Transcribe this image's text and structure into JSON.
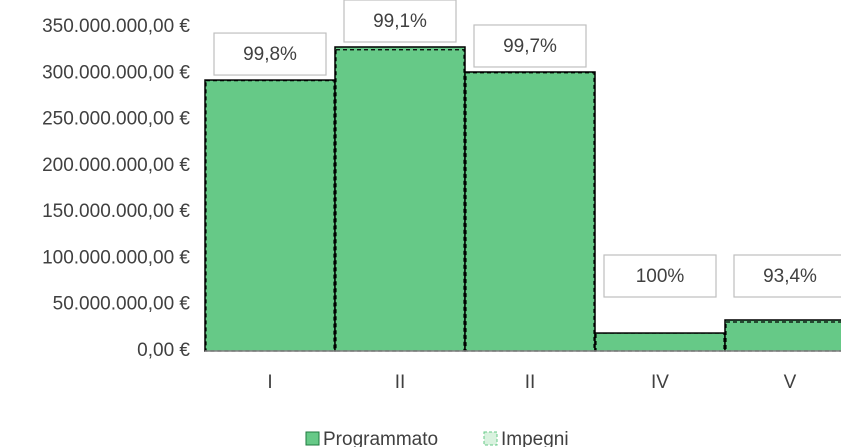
{
  "chart_data": {
    "type": "bar",
    "categories": [
      "I",
      "II",
      "II",
      "IV",
      "V"
    ],
    "series": [
      {
        "name": "Programmato",
        "color": "#66c987",
        "values": [
          292700000,
          328400000,
          301400000,
          19400000,
          33500000
        ]
      },
      {
        "name": "Impegni",
        "color": "#d9f2df",
        "values": [
          292100000,
          325400000,
          300500000,
          19400000,
          31300000
        ]
      }
    ],
    "annotations": [
      "99,8%",
      "99,1%",
      "99,7%",
      "100%",
      "93,4%"
    ],
    "ylim": [
      0,
      350000000
    ],
    "yticks": [
      {
        "value": 0,
        "label": "0,00 €"
      },
      {
        "value": 50000000,
        "label": "50.000.000,00 €"
      },
      {
        "value": 100000000,
        "label": "100.000.000,00 €"
      },
      {
        "value": 150000000,
        "label": "150.000.000,00 €"
      },
      {
        "value": 200000000,
        "label": "200.000.000,00 €"
      },
      {
        "value": 250000000,
        "label": "250.000.000,00 €"
      },
      {
        "value": 300000000,
        "label": "300.000.000,00 €"
      },
      {
        "value": 350000000,
        "label": "350.000.000,00 €"
      }
    ],
    "grid": false,
    "legend": "bottom"
  }
}
